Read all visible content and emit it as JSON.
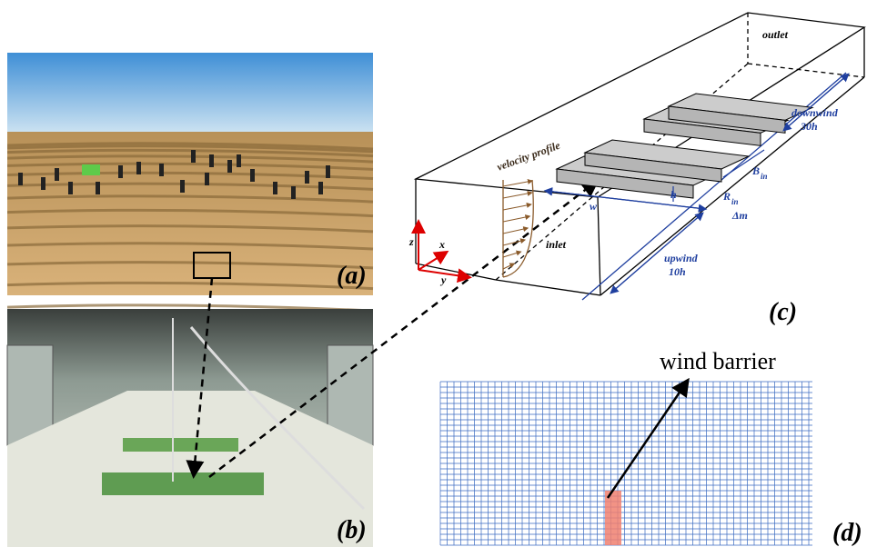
{
  "panels": {
    "a": {
      "label": "(a)"
    },
    "b": {
      "label": "(b)"
    },
    "c": {
      "label": "(c)",
      "outlet": "outlet",
      "inlet": "inlet",
      "velocity_profile": "velocity profile",
      "downwind": "downwind",
      "downwind_dist": "30h",
      "upwind": "upwind",
      "upwind_dist": "10h",
      "h": "h",
      "w": "w",
      "B": "B",
      "B_sub": "in",
      "R": "R",
      "R_sub": "in",
      "dm": "Δm",
      "x": "x",
      "y": "y",
      "z": "z"
    },
    "d": {
      "label": "(d)",
      "wind_barrier": "wind barrier"
    }
  }
}
